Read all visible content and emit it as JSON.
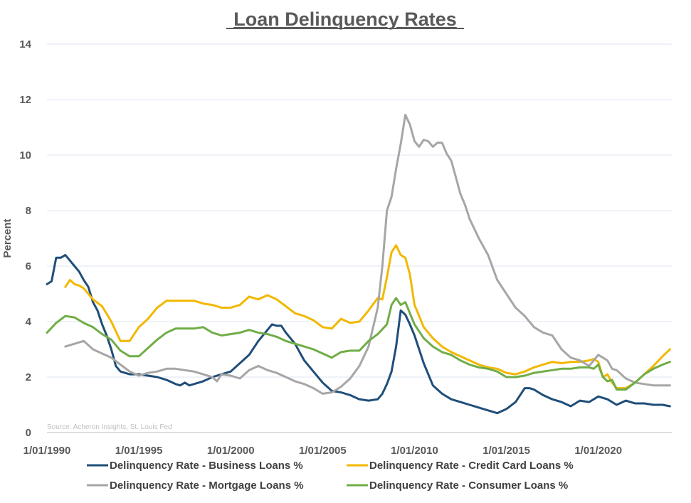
{
  "chart_data": {
    "type": "line",
    "title": "Loan Delinquency Rates",
    "ylabel": "Percent",
    "xlabel": "",
    "ylim": [
      0,
      14
    ],
    "y_ticks": [
      "0",
      "2",
      "4",
      "6",
      "8",
      "10",
      "12",
      "14"
    ],
    "x_ticks": [
      "1/01/1990",
      "1/01/1995",
      "1/01/2000",
      "1/01/2005",
      "1/01/2010",
      "1/01/2015",
      "1/01/2020"
    ],
    "x_range": [
      "1990",
      "2024"
    ],
    "grid": "horizontal",
    "legend_position": "bottom",
    "source": "Source: Acheron Insights, St. Louis Fed",
    "series": [
      {
        "name": "Delinquency Rate - Business Loans %",
        "color": "#1f4e79",
        "x": [
          1990.0,
          1990.25,
          1990.5,
          1990.75,
          1991.0,
          1991.25,
          1991.5,
          1991.75,
          1992.0,
          1992.25,
          1992.5,
          1992.75,
          1993.0,
          1993.25,
          1993.5,
          1993.75,
          1994.0,
          1994.5,
          1995.0,
          1995.5,
          1996.0,
          1996.5,
          1997.0,
          1997.25,
          1997.5,
          1997.75,
          1998.0,
          1998.5,
          1999.0,
          1999.5,
          2000.0,
          2000.5,
          2001.0,
          2001.5,
          2002.0,
          2002.25,
          2002.5,
          2002.75,
          2003.0,
          2003.5,
          2004.0,
          2004.5,
          2005.0,
          2005.5,
          2006.0,
          2006.5,
          2007.0,
          2007.5,
          2008.0,
          2008.25,
          2008.5,
          2008.75,
          2009.0,
          2009.25,
          2009.5,
          2009.75,
          2010.0,
          2010.5,
          2011.0,
          2011.5,
          2012.0,
          2012.5,
          2013.0,
          2013.5,
          2014.0,
          2014.5,
          2015.0,
          2015.5,
          2016.0,
          2016.25,
          2016.5,
          2016.75,
          2017.0,
          2017.5,
          2018.0,
          2018.5,
          2019.0,
          2019.5,
          2020.0,
          2020.5,
          2021.0,
          2021.5,
          2022.0,
          2022.5,
          2023.0,
          2023.5,
          2023.9
        ],
        "values": [
          5.35,
          5.45,
          6.3,
          6.3,
          6.4,
          6.2,
          6.0,
          5.8,
          5.5,
          5.25,
          4.7,
          4.4,
          3.9,
          3.5,
          3.0,
          2.4,
          2.2,
          2.1,
          2.1,
          2.05,
          2.0,
          1.9,
          1.75,
          1.7,
          1.8,
          1.7,
          1.75,
          1.85,
          2.0,
          2.1,
          2.2,
          2.5,
          2.8,
          3.3,
          3.7,
          3.9,
          3.85,
          3.85,
          3.6,
          3.2,
          2.6,
          2.2,
          1.8,
          1.5,
          1.45,
          1.35,
          1.2,
          1.15,
          1.2,
          1.4,
          1.75,
          2.2,
          3.1,
          4.4,
          4.25,
          3.9,
          3.5,
          2.5,
          1.7,
          1.4,
          1.2,
          1.1,
          1.0,
          0.9,
          0.8,
          0.7,
          0.85,
          1.1,
          1.6,
          1.6,
          1.55,
          1.45,
          1.35,
          1.2,
          1.1,
          0.95,
          1.15,
          1.1,
          1.3,
          1.2,
          1.0,
          1.15,
          1.05,
          1.05,
          1.0,
          1.0,
          0.95
        ]
      },
      {
        "name": "Delinquency Rate - Credit Card Loans %",
        "color": "#f2b800",
        "x": [
          1991.0,
          1991.25,
          1991.5,
          1991.75,
          1992.0,
          1992.5,
          1993.0,
          1993.5,
          1994.0,
          1994.5,
          1995.0,
          1995.5,
          1996.0,
          1996.5,
          1997.0,
          1997.5,
          1998.0,
          1998.5,
          1999.0,
          1999.5,
          2000.0,
          2000.5,
          2001.0,
          2001.5,
          2002.0,
          2002.5,
          2003.0,
          2003.5,
          2004.0,
          2004.5,
          2005.0,
          2005.5,
          2006.0,
          2006.5,
          2007.0,
          2007.5,
          2008.0,
          2008.25,
          2008.5,
          2008.75,
          2009.0,
          2009.25,
          2009.5,
          2009.75,
          2010.0,
          2010.5,
          2011.0,
          2011.5,
          2012.0,
          2012.5,
          2013.0,
          2013.5,
          2014.0,
          2014.5,
          2015.0,
          2015.5,
          2016.0,
          2016.5,
          2017.0,
          2017.5,
          2018.0,
          2018.5,
          2019.0,
          2019.5,
          2019.75,
          2020.0,
          2020.25,
          2020.5,
          2020.75,
          2021.0,
          2021.5,
          2022.0,
          2022.5,
          2023.0,
          2023.5,
          2023.9
        ],
        "values": [
          5.25,
          5.5,
          5.35,
          5.3,
          5.2,
          4.8,
          4.55,
          4.0,
          3.3,
          3.3,
          3.8,
          4.1,
          4.5,
          4.75,
          4.75,
          4.75,
          4.75,
          4.65,
          4.6,
          4.5,
          4.5,
          4.6,
          4.9,
          4.8,
          4.95,
          4.8,
          4.55,
          4.3,
          4.2,
          4.05,
          3.8,
          3.75,
          4.1,
          3.95,
          4.0,
          4.4,
          4.85,
          4.8,
          5.6,
          6.5,
          6.75,
          6.4,
          6.3,
          5.7,
          4.6,
          3.8,
          3.4,
          3.1,
          2.9,
          2.75,
          2.6,
          2.45,
          2.35,
          2.3,
          2.15,
          2.1,
          2.2,
          2.35,
          2.45,
          2.55,
          2.5,
          2.55,
          2.55,
          2.6,
          2.65,
          2.55,
          2.0,
          2.1,
          1.8,
          1.6,
          1.6,
          1.8,
          2.1,
          2.4,
          2.75,
          3.0
        ]
      },
      {
        "name": "Delinquency Rate - Mortgage Loans %",
        "color": "#a6a6a6",
        "x": [
          1991.0,
          1991.5,
          1992.0,
          1992.5,
          1993.0,
          1993.5,
          1994.0,
          1994.5,
          1995.0,
          1995.5,
          1996.0,
          1996.5,
          1997.0,
          1997.5,
          1998.0,
          1998.5,
          1999.0,
          1999.25,
          1999.5,
          2000.0,
          2000.5,
          2001.0,
          2001.5,
          2002.0,
          2002.5,
          2003.0,
          2003.5,
          2004.0,
          2004.5,
          2005.0,
          2005.5,
          2006.0,
          2006.5,
          2007.0,
          2007.5,
          2008.0,
          2008.25,
          2008.5,
          2008.75,
          2009.0,
          2009.25,
          2009.5,
          2009.75,
          2010.0,
          2010.25,
          2010.5,
          2010.75,
          2011.0,
          2011.25,
          2011.5,
          2011.75,
          2012.0,
          2012.25,
          2012.5,
          2012.75,
          2013.0,
          2013.5,
          2014.0,
          2014.5,
          2015.0,
          2015.5,
          2016.0,
          2016.5,
          2017.0,
          2017.5,
          2018.0,
          2018.5,
          2019.0,
          2019.5,
          2020.0,
          2020.25,
          2020.5,
          2020.75,
          2021.0,
          2021.5,
          2022.0,
          2022.5,
          2023.0,
          2023.5,
          2023.9
        ],
        "values": [
          3.1,
          3.2,
          3.3,
          3.0,
          2.85,
          2.7,
          2.45,
          2.2,
          2.05,
          2.15,
          2.2,
          2.3,
          2.3,
          2.25,
          2.2,
          2.1,
          2.0,
          1.85,
          2.1,
          2.05,
          1.95,
          2.25,
          2.4,
          2.25,
          2.15,
          2.0,
          1.85,
          1.75,
          1.6,
          1.4,
          1.45,
          1.65,
          1.95,
          2.4,
          3.1,
          4.5,
          6.0,
          8.0,
          8.5,
          9.5,
          10.4,
          11.45,
          11.1,
          10.5,
          10.3,
          10.55,
          10.5,
          10.3,
          10.45,
          10.45,
          10.05,
          9.8,
          9.2,
          8.6,
          8.2,
          7.7,
          7.0,
          6.4,
          5.5,
          5.0,
          4.5,
          4.2,
          3.8,
          3.6,
          3.5,
          3.0,
          2.7,
          2.6,
          2.4,
          2.8,
          2.7,
          2.6,
          2.3,
          2.25,
          1.95,
          1.8,
          1.75,
          1.7,
          1.7,
          1.7
        ]
      },
      {
        "name": "Delinquency Rate - Consumer Loans %",
        "color": "#70ad47",
        "x": [
          1990.0,
          1990.5,
          1991.0,
          1991.5,
          1992.0,
          1992.5,
          1993.0,
          1993.5,
          1994.0,
          1994.5,
          1995.0,
          1995.5,
          1996.0,
          1996.5,
          1997.0,
          1997.5,
          1998.0,
          1998.5,
          1999.0,
          1999.5,
          2000.0,
          2000.5,
          2001.0,
          2001.5,
          2002.0,
          2002.5,
          2003.0,
          2003.5,
          2004.0,
          2004.5,
          2005.0,
          2005.5,
          2006.0,
          2006.5,
          2007.0,
          2007.5,
          2008.0,
          2008.5,
          2008.75,
          2009.0,
          2009.25,
          2009.5,
          2009.75,
          2010.0,
          2010.5,
          2011.0,
          2011.5,
          2012.0,
          2012.5,
          2013.0,
          2013.5,
          2014.0,
          2014.5,
          2015.0,
          2015.5,
          2016.0,
          2016.5,
          2017.0,
          2017.5,
          2018.0,
          2018.5,
          2019.0,
          2019.5,
          2019.75,
          2020.0,
          2020.25,
          2020.5,
          2020.75,
          2021.0,
          2021.5,
          2022.0,
          2022.5,
          2023.0,
          2023.5,
          2023.9
        ],
        "values": [
          3.6,
          3.95,
          4.2,
          4.15,
          3.95,
          3.8,
          3.55,
          3.35,
          2.95,
          2.75,
          2.75,
          3.05,
          3.35,
          3.6,
          3.75,
          3.75,
          3.75,
          3.8,
          3.6,
          3.5,
          3.55,
          3.6,
          3.7,
          3.6,
          3.55,
          3.45,
          3.3,
          3.2,
          3.1,
          3.0,
          2.85,
          2.7,
          2.9,
          2.95,
          2.95,
          3.3,
          3.55,
          3.9,
          4.6,
          4.85,
          4.6,
          4.7,
          4.3,
          3.9,
          3.4,
          3.1,
          2.9,
          2.8,
          2.6,
          2.45,
          2.35,
          2.3,
          2.2,
          2.0,
          2.0,
          2.05,
          2.15,
          2.2,
          2.25,
          2.3,
          2.3,
          2.35,
          2.35,
          2.3,
          2.45,
          2.0,
          1.85,
          1.9,
          1.55,
          1.55,
          1.8,
          2.1,
          2.3,
          2.45,
          2.55
        ]
      }
    ]
  }
}
